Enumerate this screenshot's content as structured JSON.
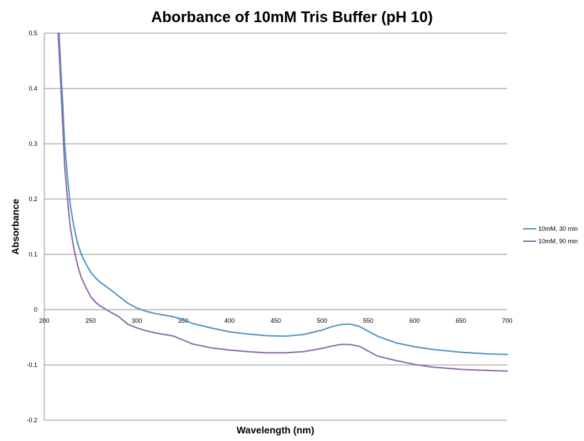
{
  "chart_data": {
    "type": "line",
    "title": "Aborbance of 10mM Tris Buffer (pH 10)",
    "xlabel": "Wavelength (nm)",
    "ylabel": "Absorbance",
    "xlim": [
      200,
      700
    ],
    "ylim": [
      -0.2,
      0.5
    ],
    "x_ticks": [
      "200",
      "250",
      "300",
      "350",
      "400",
      "450",
      "500",
      "550",
      "600",
      "650",
      "700"
    ],
    "y_ticks": [
      "-0.2",
      "-0.1",
      "0",
      "0.1",
      "0.2",
      "0.3",
      "0.4",
      "0.5"
    ],
    "grid": "horizontal",
    "legend_position": "right",
    "series": [
      {
        "name": "10mM, 30 min",
        "color": "#4f94c4",
        "x": [
          216,
          218,
          220,
          222,
          225,
          228,
          232,
          236,
          240,
          245,
          250,
          255,
          260,
          270,
          280,
          290,
          300,
          310,
          320,
          340,
          350,
          360,
          380,
          400,
          420,
          440,
          460,
          480,
          500,
          510,
          520,
          530,
          540,
          550,
          560,
          580,
          600,
          620,
          650,
          680,
          700
        ],
        "y": [
          0.5,
          0.43,
          0.37,
          0.3,
          0.24,
          0.19,
          0.15,
          0.12,
          0.1,
          0.083,
          0.068,
          0.058,
          0.05,
          0.038,
          0.025,
          0.012,
          0.003,
          -0.003,
          -0.007,
          -0.013,
          -0.018,
          -0.025,
          -0.033,
          -0.04,
          -0.044,
          -0.047,
          -0.048,
          -0.045,
          -0.037,
          -0.031,
          -0.027,
          -0.026,
          -0.03,
          -0.039,
          -0.048,
          -0.06,
          -0.067,
          -0.072,
          -0.077,
          -0.08,
          -0.081
        ]
      },
      {
        "name": "10mM, 90 min",
        "color": "#8e6aa8",
        "x": [
          215,
          218,
          220,
          222,
          225,
          228,
          232,
          236,
          240,
          245,
          250,
          255,
          260,
          270,
          280,
          290,
          300,
          310,
          320,
          340,
          350,
          360,
          380,
          400,
          420,
          440,
          460,
          480,
          500,
          510,
          520,
          530,
          540,
          550,
          560,
          580,
          600,
          620,
          650,
          680,
          700
        ],
        "y": [
          0.5,
          0.4,
          0.33,
          0.26,
          0.2,
          0.15,
          0.11,
          0.08,
          0.058,
          0.04,
          0.024,
          0.014,
          0.007,
          -0.003,
          -0.012,
          -0.026,
          -0.033,
          -0.038,
          -0.042,
          -0.048,
          -0.055,
          -0.062,
          -0.069,
          -0.073,
          -0.076,
          -0.078,
          -0.078,
          -0.076,
          -0.07,
          -0.066,
          -0.063,
          -0.063,
          -0.066,
          -0.075,
          -0.084,
          -0.092,
          -0.099,
          -0.104,
          -0.108,
          -0.11,
          -0.111
        ]
      }
    ]
  }
}
